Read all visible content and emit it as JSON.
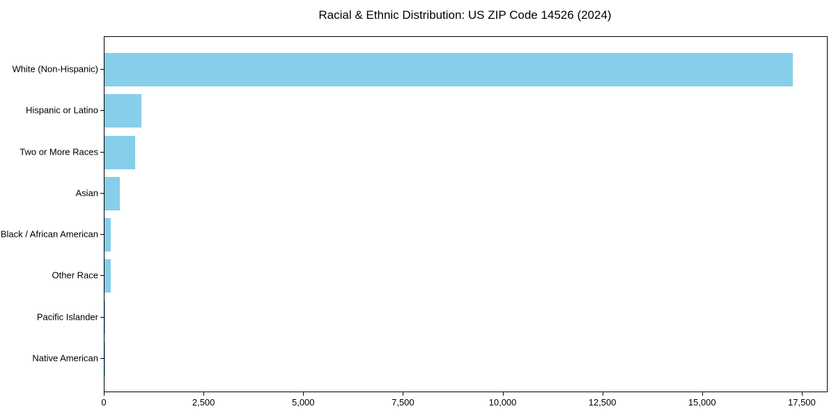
{
  "page": {
    "background_color": "#ffffff"
  },
  "chart_data": {
    "type": "bar",
    "orientation": "horizontal",
    "title": "Racial & Ethnic Distribution: US ZIP Code 14526 (2024)",
    "categories": [
      "White (Non-Hispanic)",
      "Hispanic or Latino",
      "Two or More Races",
      "Asian",
      "Black / African American",
      "Other Race",
      "Pacific Islander",
      "Native American"
    ],
    "values": [
      17250,
      925,
      770,
      385,
      165,
      155,
      8,
      4
    ],
    "xlabel": "",
    "ylabel": "",
    "xlim": [
      0,
      18113
    ],
    "xticks": [
      0,
      2500,
      5000,
      7500,
      10000,
      12500,
      15000,
      17500
    ],
    "xtick_labels": [
      "0",
      "2,500",
      "5,000",
      "7,500",
      "10,000",
      "12,500",
      "15,000",
      "17,500"
    ],
    "bar_color": "#87CEEB",
    "axis_color": "#000000",
    "text_color": "#000000",
    "grid": false,
    "legend": null
  }
}
